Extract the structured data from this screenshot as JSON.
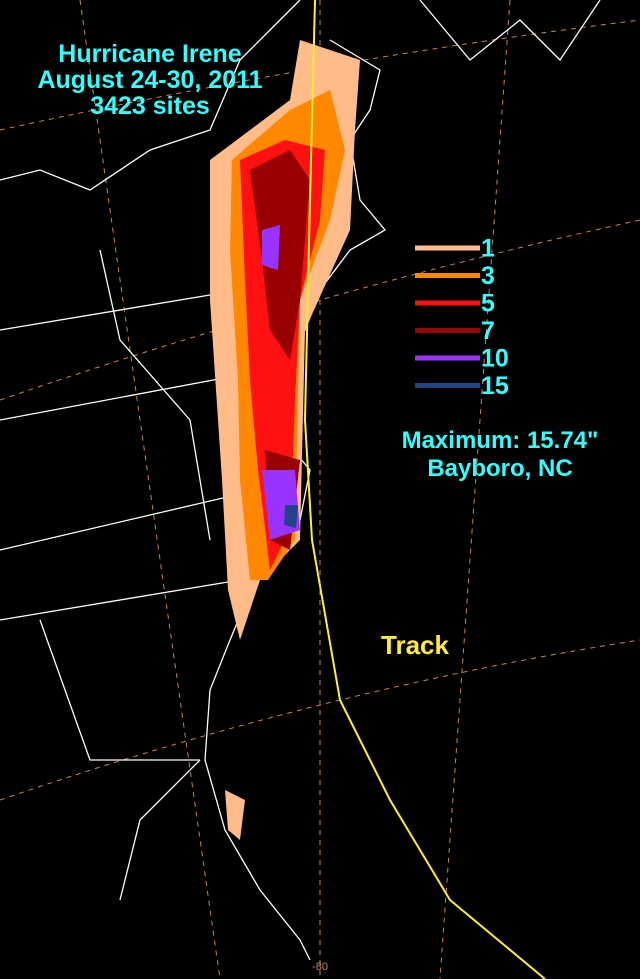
{
  "title_lines": [
    "Hurricane Irene",
    "August 24-30, 2011",
    "3423 sites"
  ],
  "legend": [
    {
      "value": 1,
      "color": "#ffbb88"
    },
    {
      "value": 3,
      "color": "#ff8800"
    },
    {
      "value": 5,
      "color": "#ff1111"
    },
    {
      "value": 7,
      "color": "#990000"
    },
    {
      "value": 10,
      "color": "#9933ff"
    },
    {
      "value": 15,
      "color": "#224488"
    }
  ],
  "maximum": "Maximum:  15.74\"",
  "maximum_location": "Bayboro, NC",
  "track_label": "Track",
  "longitude_label": "-80"
}
